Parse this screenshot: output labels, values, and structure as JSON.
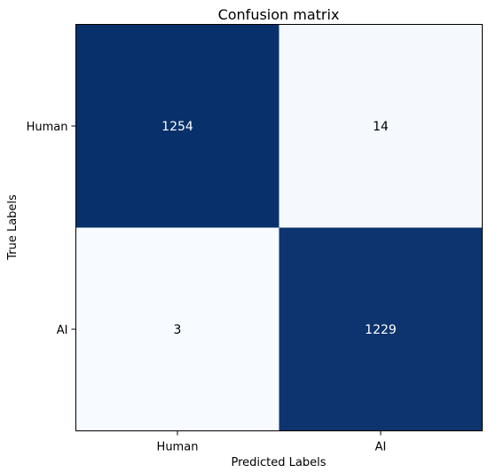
{
  "chart_data": {
    "type": "heatmap",
    "title": "Confusion matrix",
    "xlabel": "Predicted Labels",
    "ylabel": "True Labels",
    "x_categories": [
      "Human",
      "AI"
    ],
    "y_categories": [
      "Human",
      "AI"
    ],
    "values": [
      [
        1254,
        14
      ],
      [
        3,
        1229
      ]
    ],
    "colormap": {
      "low": "#f7fbff",
      "high": "#08306b"
    },
    "text_colors": {
      "dark_cell": "#ffffff",
      "light_cell": "#000000"
    }
  }
}
